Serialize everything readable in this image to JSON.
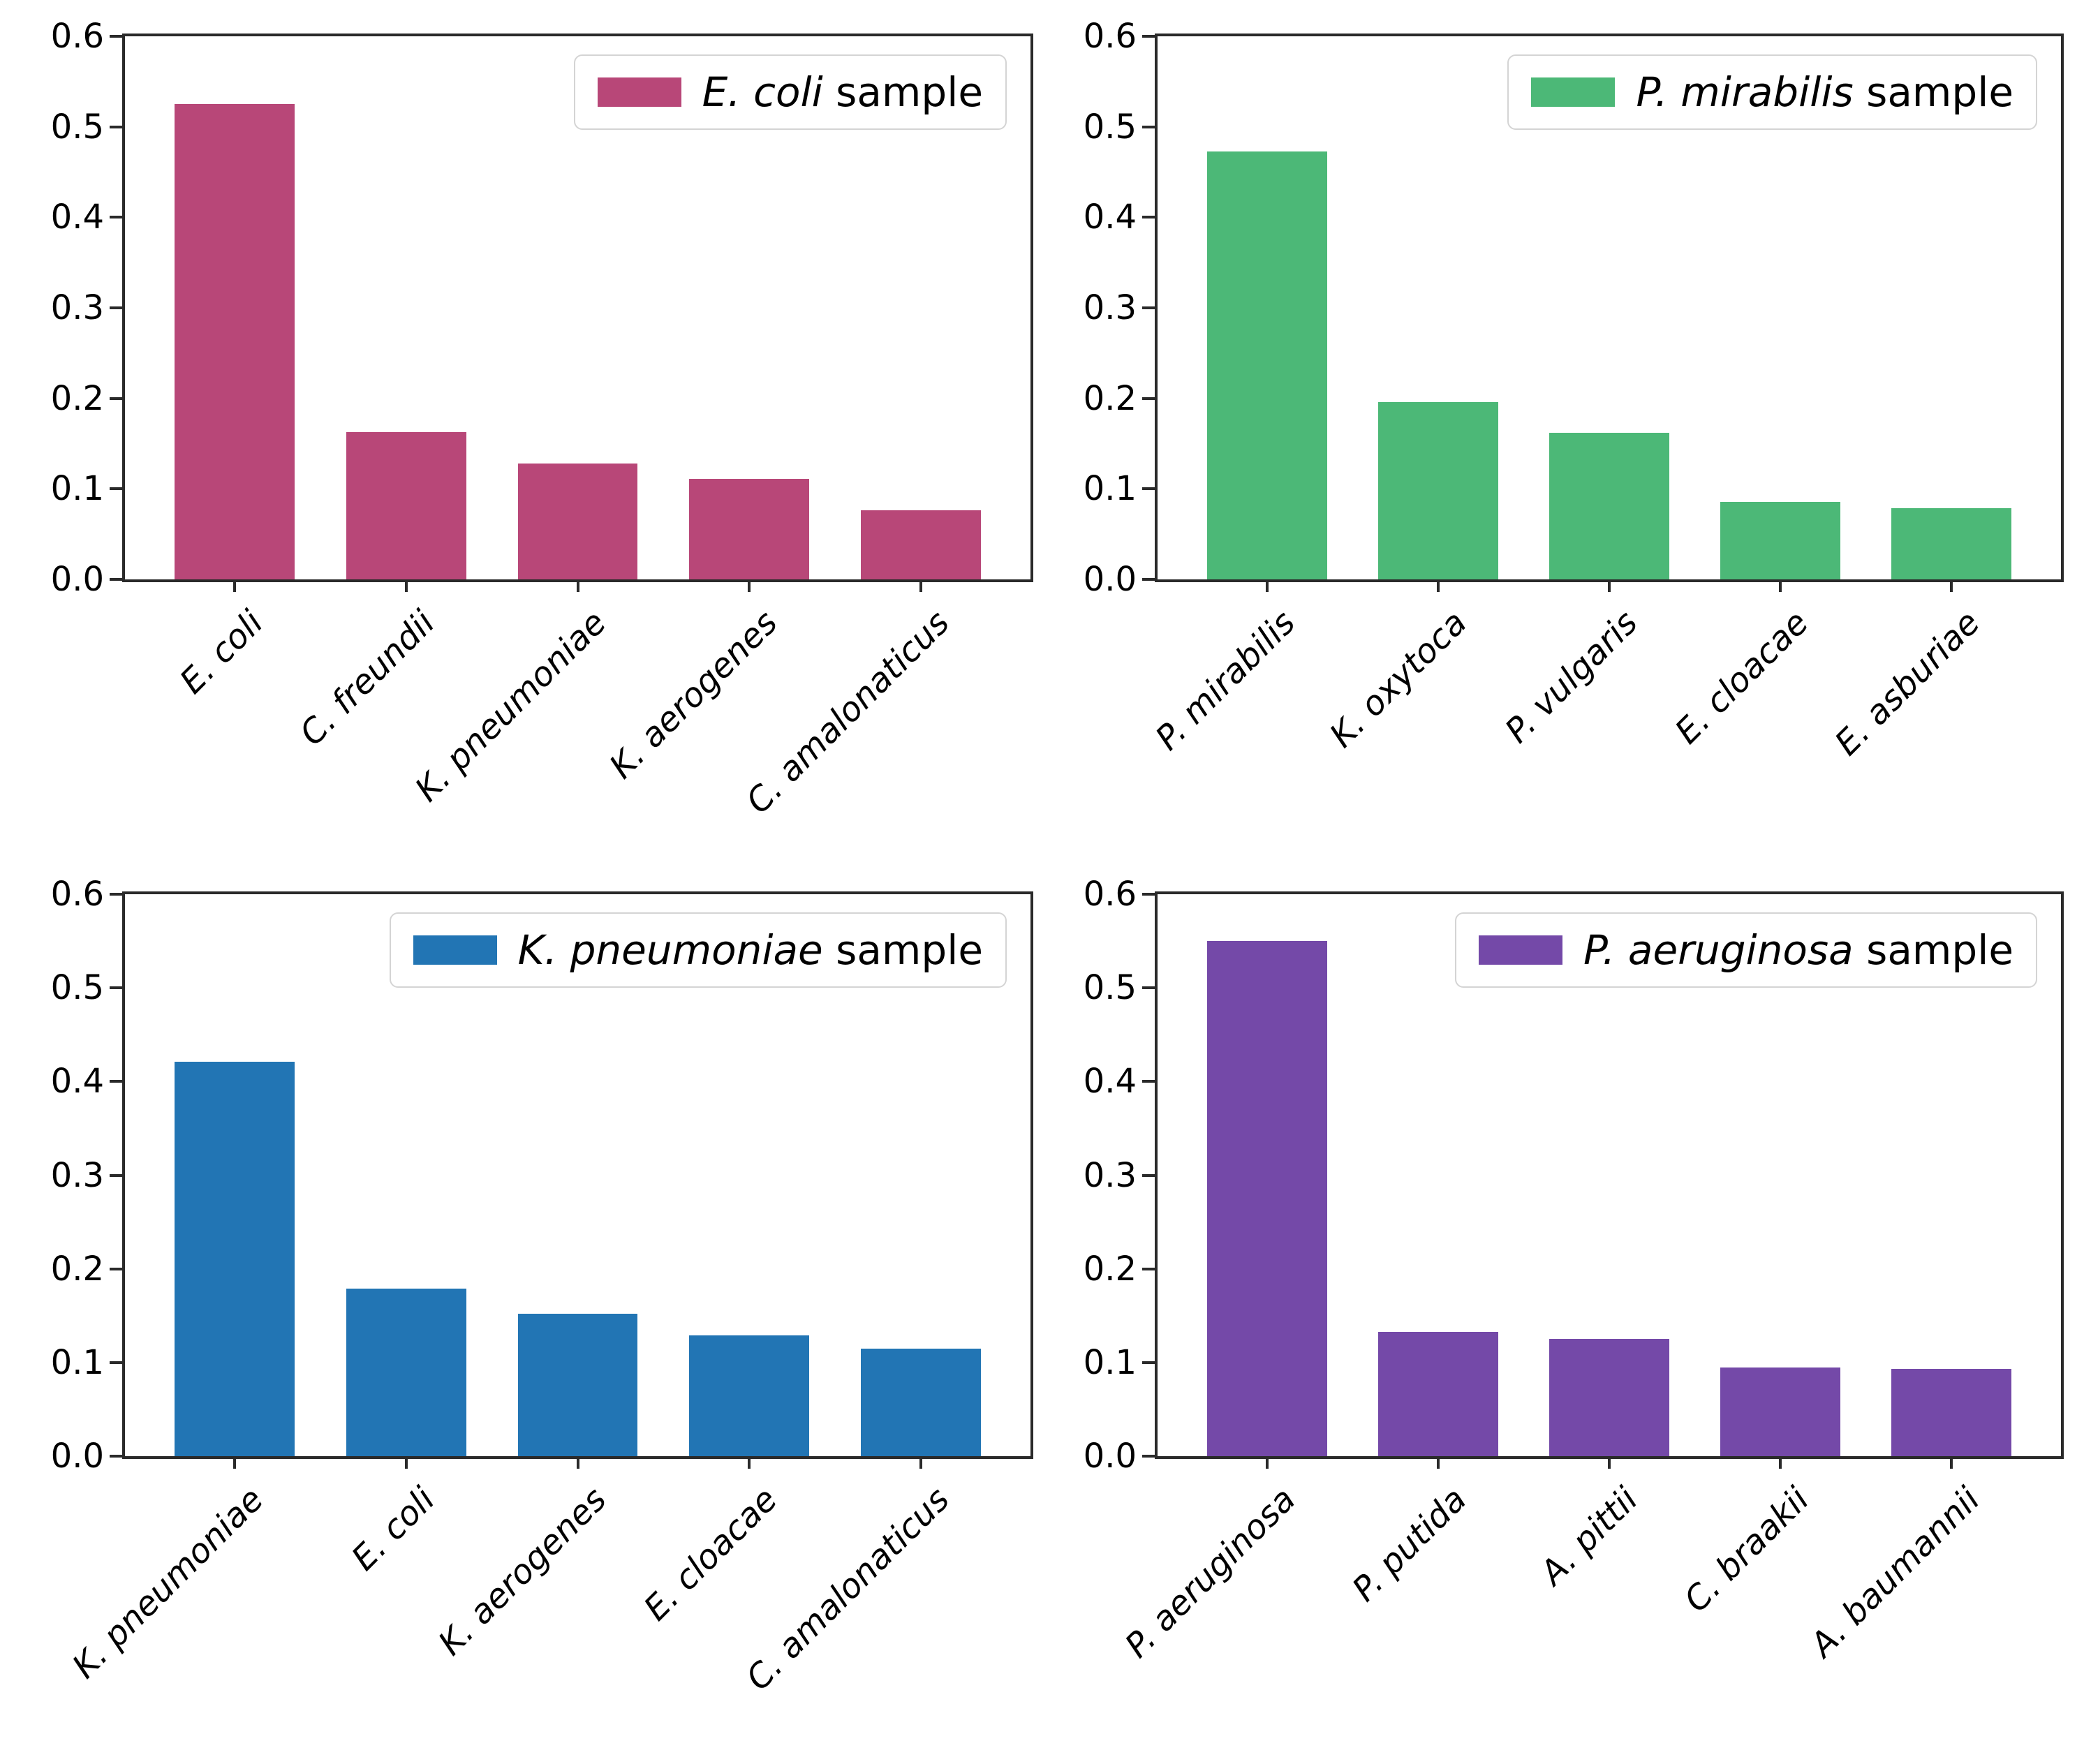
{
  "figure": {
    "background": "#ffffff",
    "axis_color": "#2a2a2a",
    "tick_label_color": "#000000",
    "y_tick_labels": [
      "0.0",
      "0.1",
      "0.2",
      "0.3",
      "0.4",
      "0.5",
      "0.6"
    ],
    "ylim": [
      0,
      0.6
    ],
    "grid": false
  },
  "chart_data": [
    {
      "type": "bar",
      "panel": "top-left",
      "legend_label": "E. coli sample",
      "legend_species": "E. coli",
      "legend_suffix": " sample",
      "legend_position": "upper right",
      "bar_color": "#b84778",
      "categories": [
        "E. coli",
        "C. freundii",
        "K. pneumoniae",
        "K. aerogenes",
        "C. amalonaticus"
      ],
      "values": [
        0.525,
        0.163,
        0.128,
        0.111,
        0.076
      ],
      "ylim": [
        0,
        0.6
      ],
      "xlabel": "",
      "ylabel": ""
    },
    {
      "type": "bar",
      "panel": "top-right",
      "legend_label": "P. mirabilis sample",
      "legend_species": "P. mirabilis",
      "legend_suffix": " sample",
      "legend_position": "upper right",
      "bar_color": "#4cb877",
      "categories": [
        "P. mirabilis",
        "K. oxytoca",
        "P. vulgaris",
        "E. cloacae",
        "E. asburiae"
      ],
      "values": [
        0.473,
        0.196,
        0.162,
        0.086,
        0.079
      ],
      "ylim": [
        0,
        0.6
      ],
      "xlabel": "",
      "ylabel": ""
    },
    {
      "type": "bar",
      "panel": "bottom-left",
      "legend_label": "K. pneumoniae sample",
      "legend_species": "K. pneumoniae",
      "legend_suffix": " sample",
      "legend_position": "upper right",
      "bar_color": "#2275b4",
      "categories": [
        "K. pneumoniae",
        "E. coli",
        "K. aerogenes",
        "E. cloacae",
        "C. amalonaticus"
      ],
      "values": [
        0.421,
        0.179,
        0.152,
        0.129,
        0.115
      ],
      "ylim": [
        0,
        0.6
      ],
      "xlabel": "",
      "ylabel": ""
    },
    {
      "type": "bar",
      "panel": "bottom-right",
      "legend_label": "P. aeruginosa sample",
      "legend_species": "P. aeruginosa",
      "legend_suffix": " sample",
      "legend_position": "upper right",
      "bar_color": "#7449a8",
      "categories": [
        "P. aeruginosa",
        "P. putida",
        "A. pittii",
        "C. braakii",
        "A. baumannii"
      ],
      "values": [
        0.55,
        0.133,
        0.125,
        0.095,
        0.093
      ],
      "ylim": [
        0,
        0.6
      ],
      "xlabel": "",
      "ylabel": ""
    }
  ]
}
